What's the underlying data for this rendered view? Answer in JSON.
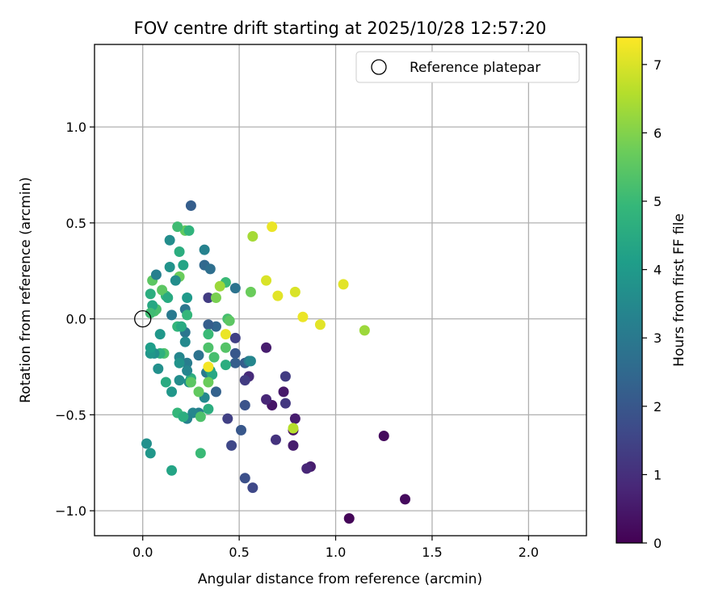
{
  "chart_data": {
    "type": "scatter",
    "title": "FOV centre drift starting at 2025/10/28 12:57:20",
    "xlabel": "Angular distance from reference (arcmin)",
    "ylabel": "Rotation from reference (arcmin)",
    "xlim": [
      -0.25,
      2.3
    ],
    "ylim": [
      -1.13,
      1.43
    ],
    "xticks": [
      0.0,
      0.5,
      1.0,
      1.5,
      2.0
    ],
    "xtick_labels": [
      "0.0",
      "0.5",
      "1.0",
      "1.5",
      "2.0"
    ],
    "yticks": [
      -1.0,
      -0.5,
      0.0,
      0.5,
      1.0
    ],
    "ytick_labels": [
      "−1.0",
      "−0.5",
      "0.0",
      "0.5",
      "1.0"
    ],
    "grid": true,
    "legend": {
      "position": "top-right",
      "label": "Reference platepar"
    },
    "reference_point": {
      "x": 0.0,
      "y": 0.0
    },
    "colorbar": {
      "label": "Hours from first FF file",
      "colormap": "viridis",
      "range": [
        0,
        7.4
      ],
      "ticks": [
        0,
        1,
        2,
        3,
        4,
        5,
        6,
        7
      ],
      "tick_labels": [
        "0",
        "1",
        "2",
        "3",
        "4",
        "5",
        "6",
        "7"
      ]
    },
    "points": [
      {
        "x": 1.07,
        "y": -1.04,
        "c": 0.1
      },
      {
        "x": 1.36,
        "y": -0.94,
        "c": 0.2
      },
      {
        "x": 1.25,
        "y": -0.61,
        "c": 0.2
      },
      {
        "x": 0.87,
        "y": -0.77,
        "c": 0.6
      },
      {
        "x": 0.85,
        "y": -0.78,
        "c": 0.8
      },
      {
        "x": 0.78,
        "y": -0.66,
        "c": 0.6
      },
      {
        "x": 0.78,
        "y": -0.58,
        "c": 0.3
      },
      {
        "x": 0.79,
        "y": -0.52,
        "c": 0.6
      },
      {
        "x": 0.69,
        "y": -0.63,
        "c": 1.1
      },
      {
        "x": 0.67,
        "y": -0.45,
        "c": 0.4
      },
      {
        "x": 0.73,
        "y": -0.38,
        "c": 0.5
      },
      {
        "x": 0.74,
        "y": -0.44,
        "c": 1.2
      },
      {
        "x": 0.74,
        "y": -0.3,
        "c": 1.3
      },
      {
        "x": 0.64,
        "y": -0.42,
        "c": 0.8
      },
      {
        "x": 0.64,
        "y": -0.15,
        "c": 0.6
      },
      {
        "x": 0.55,
        "y": -0.3,
        "c": 0.9
      },
      {
        "x": 0.53,
        "y": -0.32,
        "c": 1.3
      },
      {
        "x": 0.53,
        "y": -0.45,
        "c": 1.9
      },
      {
        "x": 0.51,
        "y": -0.58,
        "c": 2.0
      },
      {
        "x": 0.53,
        "y": -0.83,
        "c": 1.8
      },
      {
        "x": 0.57,
        "y": -0.88,
        "c": 1.6
      },
      {
        "x": 0.46,
        "y": -0.66,
        "c": 1.6
      },
      {
        "x": 0.44,
        "y": -0.52,
        "c": 1.4
      },
      {
        "x": 0.48,
        "y": -0.1,
        "c": 1.4
      },
      {
        "x": 0.48,
        "y": -0.18,
        "c": 2.0
      },
      {
        "x": 0.48,
        "y": -0.23,
        "c": 2.2
      },
      {
        "x": 0.53,
        "y": -0.23,
        "c": 2.2
      },
      {
        "x": 0.55,
        "y": -0.22,
        "c": 3.0
      },
      {
        "x": 0.56,
        "y": -0.22,
        "c": 3.4
      },
      {
        "x": 0.48,
        "y": 0.16,
        "c": 2.8
      },
      {
        "x": 0.38,
        "y": -0.38,
        "c": 2.3
      },
      {
        "x": 0.38,
        "y": -0.04,
        "c": 2.4
      },
      {
        "x": 0.34,
        "y": -0.03,
        "c": 2.2
      },
      {
        "x": 0.34,
        "y": 0.11,
        "c": 1.3
      },
      {
        "x": 0.32,
        "y": 0.28,
        "c": 2.5
      },
      {
        "x": 0.35,
        "y": 0.26,
        "c": 2.7
      },
      {
        "x": 0.25,
        "y": 0.59,
        "c": 2.2
      },
      {
        "x": 0.32,
        "y": 0.36,
        "c": 3.3
      },
      {
        "x": 0.29,
        "y": -0.19,
        "c": 2.8
      },
      {
        "x": 0.29,
        "y": -0.49,
        "c": 3.2
      },
      {
        "x": 0.33,
        "y": -0.28,
        "c": 3.0
      },
      {
        "x": 0.32,
        "y": -0.41,
        "c": 3.5
      },
      {
        "x": 0.35,
        "y": -0.27,
        "c": 4.0
      },
      {
        "x": 0.36,
        "y": -0.29,
        "c": 4.4
      },
      {
        "x": 0.34,
        "y": -0.47,
        "c": 4.6
      },
      {
        "x": 0.26,
        "y": -0.49,
        "c": 3.4
      },
      {
        "x": 0.23,
        "y": -0.52,
        "c": 3.3
      },
      {
        "x": 0.24,
        "y": -0.33,
        "c": 3.6
      },
      {
        "x": 0.25,
        "y": -0.31,
        "c": 4.6
      },
      {
        "x": 0.23,
        "y": -0.23,
        "c": 3.1
      },
      {
        "x": 0.23,
        "y": -0.27,
        "c": 3.4
      },
      {
        "x": 0.22,
        "y": -0.07,
        "c": 2.9
      },
      {
        "x": 0.22,
        "y": -0.12,
        "c": 3.5
      },
      {
        "x": 0.22,
        "y": 0.05,
        "c": 2.9
      },
      {
        "x": 0.23,
        "y": 0.02,
        "c": 4.9
      },
      {
        "x": 0.23,
        "y": 0.11,
        "c": 4.0
      },
      {
        "x": 0.21,
        "y": 0.28,
        "c": 4.3
      },
      {
        "x": 0.22,
        "y": 0.46,
        "c": 5.6
      },
      {
        "x": 0.24,
        "y": 0.46,
        "c": 4.8
      },
      {
        "x": 0.19,
        "y": 0.35,
        "c": 4.6
      },
      {
        "x": 0.18,
        "y": 0.48,
        "c": 5.1
      },
      {
        "x": 0.19,
        "y": 0.22,
        "c": 5.7
      },
      {
        "x": 0.17,
        "y": 0.2,
        "c": 3.6
      },
      {
        "x": 0.14,
        "y": 0.41,
        "c": 3.6
      },
      {
        "x": 0.14,
        "y": 0.27,
        "c": 3.8
      },
      {
        "x": 0.12,
        "y": 0.12,
        "c": 4.9
      },
      {
        "x": 0.1,
        "y": 0.15,
        "c": 5.5
      },
      {
        "x": 0.13,
        "y": 0.11,
        "c": 4.5
      },
      {
        "x": 0.15,
        "y": 0.02,
        "c": 3.0
      },
      {
        "x": 0.18,
        "y": -0.04,
        "c": 4.9
      },
      {
        "x": 0.2,
        "y": -0.04,
        "c": 4.5
      },
      {
        "x": 0.19,
        "y": -0.2,
        "c": 3.4
      },
      {
        "x": 0.19,
        "y": -0.23,
        "c": 3.8
      },
      {
        "x": 0.19,
        "y": -0.32,
        "c": 3.6
      },
      {
        "x": 0.15,
        "y": -0.38,
        "c": 3.9
      },
      {
        "x": 0.12,
        "y": -0.33,
        "c": 4.5
      },
      {
        "x": 0.11,
        "y": -0.18,
        "c": 5.3
      },
      {
        "x": 0.09,
        "y": -0.18,
        "c": 4.7
      },
      {
        "x": 0.08,
        "y": -0.26,
        "c": 3.7
      },
      {
        "x": 0.06,
        "y": -0.18,
        "c": 3.7
      },
      {
        "x": 0.04,
        "y": -0.18,
        "c": 3.9
      },
      {
        "x": 0.04,
        "y": -0.15,
        "c": 4.1
      },
      {
        "x": 0.09,
        "y": -0.08,
        "c": 3.9
      },
      {
        "x": 0.06,
        "y": 0.04,
        "c": 5.3
      },
      {
        "x": 0.07,
        "y": 0.05,
        "c": 5.2
      },
      {
        "x": 0.05,
        "y": 0.07,
        "c": 4.4
      },
      {
        "x": 0.04,
        "y": 0.13,
        "c": 4.6
      },
      {
        "x": 0.05,
        "y": 0.2,
        "c": 5.5
      },
      {
        "x": 0.07,
        "y": 0.23,
        "c": 3.2
      },
      {
        "x": 0.04,
        "y": 0.03,
        "c": 5.1
      },
      {
        "x": 0.18,
        "y": -0.49,
        "c": 4.9
      },
      {
        "x": 0.21,
        "y": -0.51,
        "c": 4.6
      },
      {
        "x": 0.3,
        "y": -0.51,
        "c": 5.3
      },
      {
        "x": 0.29,
        "y": -0.38,
        "c": 5.6
      },
      {
        "x": 0.25,
        "y": -0.33,
        "c": 5.5
      },
      {
        "x": 0.34,
        "y": -0.33,
        "c": 5.7
      },
      {
        "x": 0.34,
        "y": -0.15,
        "c": 5.3
      },
      {
        "x": 0.37,
        "y": -0.2,
        "c": 5.2
      },
      {
        "x": 0.34,
        "y": -0.08,
        "c": 5.0
      },
      {
        "x": 0.43,
        "y": -0.15,
        "c": 5.4
      },
      {
        "x": 0.43,
        "y": -0.24,
        "c": 4.6
      },
      {
        "x": 0.44,
        "y": 0.0,
        "c": 5.2
      },
      {
        "x": 0.45,
        "y": -0.01,
        "c": 5.5
      },
      {
        "x": 0.43,
        "y": 0.19,
        "c": 5.0
      },
      {
        "x": 0.4,
        "y": 0.17,
        "c": 6.3
      },
      {
        "x": 0.38,
        "y": 0.11,
        "c": 5.9
      },
      {
        "x": 0.56,
        "y": 0.14,
        "c": 5.7
      },
      {
        "x": 0.57,
        "y": 0.43,
        "c": 6.4
      },
      {
        "x": 0.34,
        "y": -0.25,
        "c": 7.3
      },
      {
        "x": 0.43,
        "y": -0.08,
        "c": 7.2
      },
      {
        "x": 0.67,
        "y": 0.48,
        "c": 7.2
      },
      {
        "x": 0.64,
        "y": 0.2,
        "c": 7.0
      },
      {
        "x": 0.7,
        "y": 0.12,
        "c": 7.1
      },
      {
        "x": 0.79,
        "y": 0.14,
        "c": 7.0
      },
      {
        "x": 0.83,
        "y": 0.01,
        "c": 7.2
      },
      {
        "x": 0.92,
        "y": -0.03,
        "c": 7.1
      },
      {
        "x": 1.04,
        "y": 0.18,
        "c": 7.1
      },
      {
        "x": 1.15,
        "y": -0.06,
        "c": 6.3
      },
      {
        "x": 0.78,
        "y": -0.57,
        "c": 6.6
      },
      {
        "x": 0.3,
        "y": -0.7,
        "c": 5.0
      },
      {
        "x": 0.15,
        "y": -0.79,
        "c": 4.3
      },
      {
        "x": 0.02,
        "y": -0.65,
        "c": 3.7
      },
      {
        "x": 0.04,
        "y": -0.7,
        "c": 3.9
      }
    ]
  }
}
